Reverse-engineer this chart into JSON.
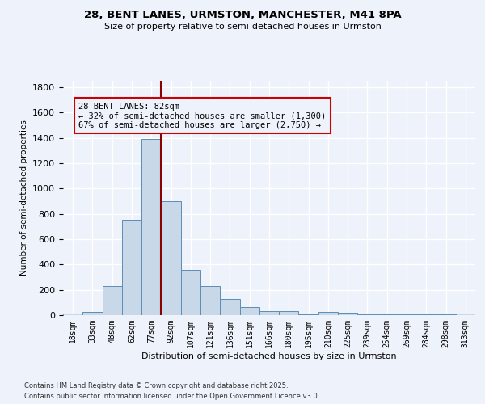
{
  "title1": "28, BENT LANES, URMSTON, MANCHESTER, M41 8PA",
  "title2": "Size of property relative to semi-detached houses in Urmston",
  "xlabel": "Distribution of semi-detached houses by size in Urmston",
  "ylabel": "Number of semi-detached properties",
  "footnote1": "Contains HM Land Registry data © Crown copyright and database right 2025.",
  "footnote2": "Contains public sector information licensed under the Open Government Licence v3.0.",
  "bin_labels": [
    "18sqm",
    "33sqm",
    "48sqm",
    "62sqm",
    "77sqm",
    "92sqm",
    "107sqm",
    "121sqm",
    "136sqm",
    "151sqm",
    "166sqm",
    "180sqm",
    "195sqm",
    "210sqm",
    "225sqm",
    "239sqm",
    "254sqm",
    "269sqm",
    "284sqm",
    "298sqm",
    "313sqm"
  ],
  "bin_values": [
    15,
    25,
    230,
    750,
    1390,
    900,
    360,
    230,
    130,
    65,
    30,
    30,
    5,
    25,
    20,
    5,
    5,
    5,
    5,
    5,
    10
  ],
  "bar_color": "#c8d8e8",
  "bar_edge_color": "#5b8db8",
  "pct_smaller": 32,
  "pct_larger": 67,
  "n_smaller": 1300,
  "n_larger": 2750,
  "vline_x_index": 4.5,
  "vline_color": "#8b0000",
  "annotation_box_color": "#cc0000",
  "ylim": [
    0,
    1850
  ],
  "background_color": "#eef2fa"
}
